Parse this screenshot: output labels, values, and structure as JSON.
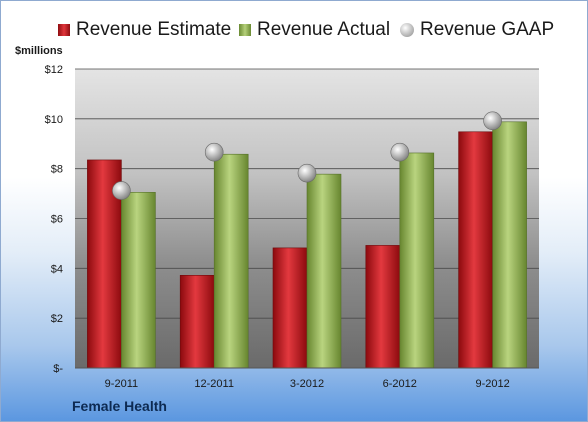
{
  "chart_data": {
    "type": "bar",
    "ylabel": "$millions",
    "company": "Female Health",
    "categories": [
      "9-2011",
      "12-2011",
      "3-2012",
      "6-2012",
      "9-2012"
    ],
    "series": [
      {
        "name": "Revenue Estimate",
        "kind": "bar",
        "color": "#c8242a",
        "values": [
          8.35,
          3.72,
          4.82,
          4.92,
          9.48
        ]
      },
      {
        "name": "Revenue Actual",
        "kind": "bar",
        "color": "#8fb04a",
        "values": [
          7.05,
          8.58,
          7.78,
          8.63,
          9.88
        ]
      },
      {
        "name": "Revenue GAAP",
        "kind": "marker",
        "color": "#a6a6a6",
        "values": [
          7.12,
          8.66,
          7.82,
          8.66,
          9.92
        ]
      }
    ],
    "ylim": [
      0,
      12
    ],
    "yticks": [
      0,
      2,
      4,
      6,
      8,
      10,
      12
    ],
    "ytick_labels": [
      "$-",
      "$2",
      "$4",
      "$6",
      "$8",
      "$10",
      "$12"
    ],
    "grid": true,
    "legend_position": "top"
  }
}
